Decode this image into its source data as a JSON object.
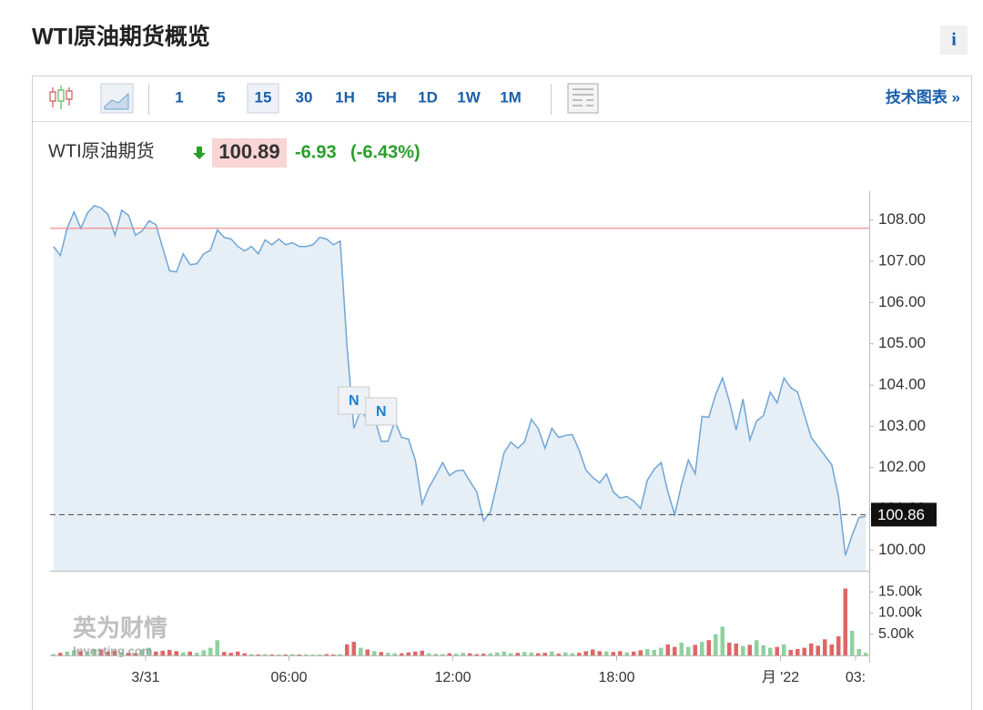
{
  "header": {
    "title": "WTI原油期货概览",
    "info_icon": "i"
  },
  "toolbar": {
    "intervals": [
      "1",
      "5",
      "15",
      "30",
      "1H",
      "5H",
      "1D",
      "1W",
      "1M"
    ],
    "selected_interval": "15",
    "link": "技术图表 »"
  },
  "quote": {
    "name": "WTI原油期货",
    "price": 100.89,
    "change": -6.93,
    "change_pct": "(-6.43%)"
  },
  "watermark": [
    "英为财情",
    "Investing.com"
  ],
  "chart_data": {
    "type": "line",
    "series": [
      {
        "color": "#6fa6d6",
        "fill": "#e6eef6",
        "values": [
          107.36,
          107.14,
          107.8,
          108.2,
          107.8,
          108.18,
          108.35,
          108.29,
          108.13,
          107.63,
          108.24,
          108.11,
          107.63,
          107.74,
          107.98,
          107.89,
          107.32,
          106.77,
          106.74,
          107.18,
          106.92,
          106.94,
          107.18,
          107.27,
          107.76,
          107.58,
          107.54,
          107.36,
          107.25,
          107.36,
          107.18,
          107.52,
          107.4,
          107.54,
          107.4,
          107.45,
          107.36,
          107.36,
          107.4,
          107.58,
          107.54,
          107.4,
          107.49,
          104.94,
          102.95,
          103.39,
          103.17,
          103.22,
          102.64,
          102.64,
          103.13,
          102.73,
          102.69,
          102.18,
          101.12,
          101.52,
          101.81,
          102.12,
          101.81,
          101.92,
          101.94,
          101.67,
          101.41,
          100.71,
          100.93,
          101.63,
          102.36,
          102.62,
          102.47,
          102.62,
          103.17,
          102.95,
          102.47,
          102.95,
          102.73,
          102.78,
          102.8,
          102.42,
          101.94,
          101.76,
          101.63,
          101.85,
          101.41,
          101.26,
          101.3,
          101.19,
          101.01,
          101.7,
          101.96,
          102.12,
          101.41,
          100.86,
          101.59,
          102.18,
          101.85,
          103.24,
          103.22,
          103.77,
          104.17,
          103.61,
          102.91,
          103.66,
          102.67,
          103.13,
          103.26,
          103.83,
          103.57,
          104.17,
          103.94,
          103.83,
          103.28,
          102.73,
          102.51,
          102.29,
          102.07,
          101.3,
          99.87,
          100.37,
          100.79,
          100.82
        ]
      }
    ],
    "xlim": [
      0,
      120
    ],
    "xticks": [
      {
        "value": 14,
        "label": "3/31"
      },
      {
        "value": 35,
        "label": "06:00"
      },
      {
        "value": 59,
        "label": "12:00"
      },
      {
        "value": 83,
        "label": "18:00"
      },
      {
        "value": 107,
        "label": "月 '22"
      },
      {
        "value": 118,
        "label": "03:"
      }
    ],
    "ylim": [
      99.5,
      108.7
    ],
    "yticks": [
      {
        "value": 100,
        "label": "100.00"
      },
      {
        "value": 101,
        "label": "101.00"
      },
      {
        "value": 102,
        "label": "102.00"
      },
      {
        "value": 103,
        "label": "103.00"
      },
      {
        "value": 104,
        "label": "104.00"
      },
      {
        "value": 105,
        "label": "105.00"
      },
      {
        "value": 106,
        "label": "106.00"
      },
      {
        "value": 107,
        "label": "107.00"
      },
      {
        "value": 108,
        "label": "108.00"
      }
    ],
    "reference_line": {
      "value": 107.8,
      "color": "#f08080"
    },
    "last_price": 100.86,
    "annotations": [
      {
        "text": "N",
        "x": 44.5
      },
      {
        "text": "N",
        "x": 48.5
      }
    ],
    "volume": {
      "up_color": "#8fd19e",
      "down_color": "#e06666",
      "ylim": [
        0,
        20000
      ],
      "yticks": [
        {
          "value": 5000,
          "label": "5.00k"
        },
        {
          "value": 10000,
          "label": "10.00k"
        },
        {
          "value": 15000,
          "label": "15.00k"
        }
      ],
      "values": [
        300,
        600,
        900,
        1200,
        1000,
        800,
        1500,
        1300,
        900,
        1100,
        800,
        600,
        500,
        1400,
        1800,
        900,
        1100,
        1300,
        1000,
        700,
        900,
        600,
        1200,
        1800,
        3600,
        800,
        600,
        900,
        500,
        300,
        200,
        300,
        200,
        200,
        200,
        300,
        200,
        200,
        200,
        200,
        300,
        200,
        300,
        2600,
        3200,
        1800,
        1400,
        1000,
        800,
        600,
        500,
        500,
        700,
        900,
        1100,
        500,
        400,
        300,
        500,
        400,
        600,
        500,
        300,
        400,
        500,
        700,
        900,
        500,
        600,
        800,
        700,
        500,
        600,
        900,
        400,
        700,
        500,
        600,
        1000,
        1400,
        1000,
        900,
        800,
        1000,
        700,
        900,
        1200,
        1500,
        1300,
        1800,
        2600,
        2000,
        3000,
        2000,
        2500,
        3200,
        3600,
        5000,
        6800,
        3000,
        2800,
        2200,
        2500,
        3600,
        2400,
        1800,
        2000,
        2600,
        1300,
        1500,
        1800,
        2800,
        2300,
        3800,
        2600,
        4500,
        15800,
        5800,
        1500,
        600
      ]
    }
  }
}
